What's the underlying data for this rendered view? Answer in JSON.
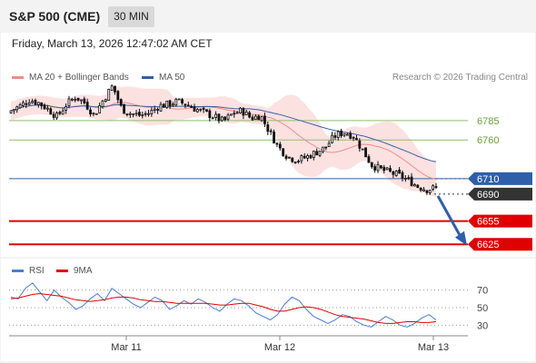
{
  "header": {
    "title": "S&P 500 (CME)",
    "timeframe": "30 MIN"
  },
  "timestamp": "Friday, March 13, 2026 12:47:02 AM CET",
  "legend": {
    "ma_bb": {
      "label": "MA 20 + Bollinger Bands",
      "color": "#f28b8b"
    },
    "ma50": {
      "label": "MA 50",
      "color": "#2e5fa8"
    }
  },
  "credit": "Research © 2026 Trading Central",
  "rsi_legend": {
    "rsi": {
      "label": "RSI",
      "color": "#4a7bd6"
    },
    "ma9": {
      "label": "9MA",
      "color": "#e00000"
    }
  },
  "chart_data": [
    {
      "type": "candlestick",
      "ylim": [
        6610,
        6826
      ],
      "x_ticks": [
        "Mar 11",
        "Mar 12",
        "Mar 13"
      ],
      "bars": 140,
      "close_path": [
        6798,
        6804,
        6812,
        6808,
        6800,
        6790,
        6806,
        6816,
        6808,
        6792,
        6812,
        6830,
        6800,
        6794,
        6792,
        6795,
        6804,
        6806,
        6810,
        6806,
        6800,
        6795,
        6790,
        6784,
        6794,
        6798,
        6788,
        6792,
        6770,
        6750,
        6738,
        6734,
        6738,
        6744,
        6750,
        6765,
        6770,
        6766,
        6748,
        6728,
        6722,
        6718,
        6714,
        6708,
        6700,
        6696,
        6698
      ],
      "levels": [
        {
          "label": "6785",
          "value": 6785,
          "color": "#8fc06a",
          "kind": "resistance"
        },
        {
          "label": "6760",
          "value": 6760,
          "color": "#8fc06a",
          "kind": "resistance"
        },
        {
          "label": "6710",
          "value": 6710,
          "color": "#2e5fa8",
          "kind": "pivot"
        },
        {
          "label": "6690",
          "value": 6690,
          "color": "#333333",
          "kind": "last"
        },
        {
          "label": "6655",
          "value": 6655,
          "color": "#e00000",
          "kind": "support"
        },
        {
          "label": "6625",
          "value": 6625,
          "color": "#e00000",
          "kind": "support"
        }
      ]
    },
    {
      "type": "line",
      "name": "RSI",
      "ylim": [
        20,
        80
      ],
      "y_ticks": [
        70,
        50,
        30
      ],
      "rsi": [
        62,
        60,
        72,
        78,
        68,
        58,
        70,
        62,
        56,
        48,
        52,
        60,
        66,
        58,
        72,
        66,
        60,
        54,
        50,
        56,
        62,
        58,
        48,
        52,
        58,
        54,
        60,
        56,
        50,
        46,
        54,
        60,
        58,
        52,
        44,
        40,
        36,
        42,
        54,
        62,
        58,
        48,
        40,
        36,
        32,
        36,
        42,
        40,
        34,
        30,
        28,
        34,
        40,
        36,
        30,
        28,
        32,
        38,
        42,
        36
      ],
      "ma9": [
        60,
        61,
        63,
        65,
        66,
        65,
        64,
        63,
        61,
        59,
        58,
        57,
        58,
        59,
        61,
        62,
        62,
        61,
        59,
        58,
        57,
        57,
        56,
        55,
        55,
        55,
        55,
        55,
        54,
        53,
        53,
        54,
        55,
        55,
        53,
        51,
        48,
        46,
        46,
        48,
        50,
        51,
        50,
        48,
        45,
        42,
        40,
        39,
        38,
        37,
        35,
        33,
        32,
        32,
        33,
        34,
        34,
        33,
        33,
        34
      ]
    }
  ]
}
